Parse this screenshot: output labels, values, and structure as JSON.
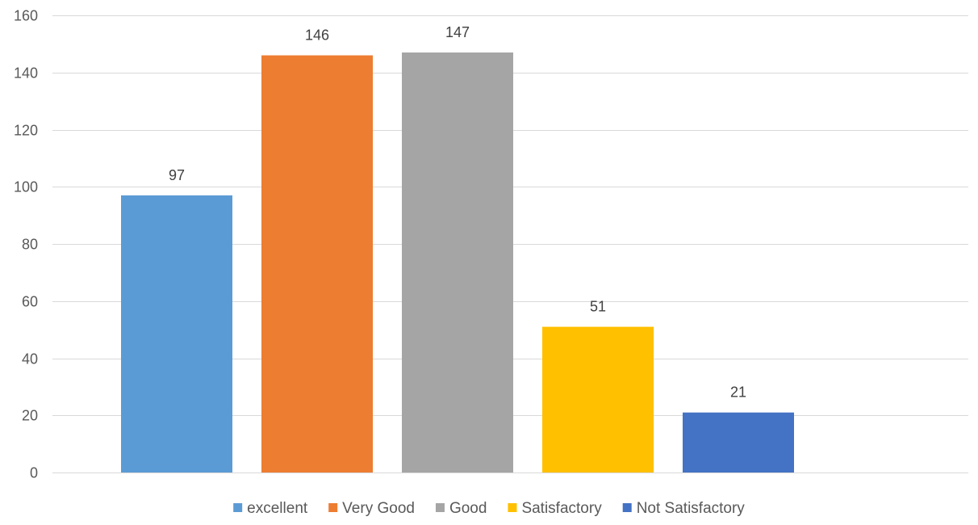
{
  "chart_data": {
    "type": "bar",
    "categories": [
      "excellent",
      "Very Good",
      "Good",
      "Satisfactory",
      "Not Satisfactory"
    ],
    "values": [
      97,
      146,
      147,
      51,
      21
    ],
    "colors": [
      "#5b9bd5",
      "#ed7d31",
      "#a5a5a5",
      "#ffc000",
      "#4472c4"
    ],
    "data_labels": [
      "97",
      "146",
      "147",
      "51",
      "21"
    ],
    "title": "",
    "xlabel": "",
    "ylabel": "",
    "ylim": [
      0,
      160
    ],
    "yticks": [
      0,
      20,
      40,
      60,
      80,
      100,
      120,
      140,
      160
    ],
    "grid": true,
    "legend": {
      "placement": "bottom",
      "entries": [
        "excellent",
        "Very Good",
        "Good",
        "Satisfactory",
        "Not Satisfactory"
      ]
    }
  }
}
